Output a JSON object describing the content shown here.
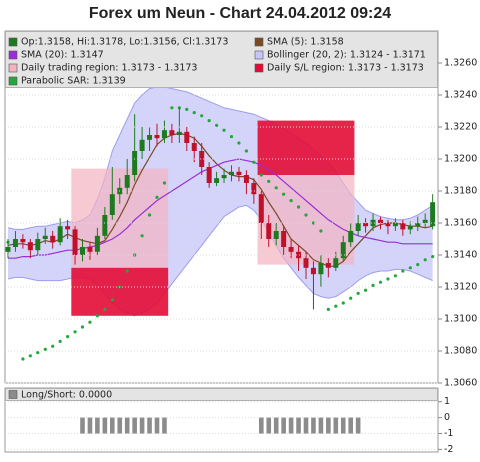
{
  "chart_data": [
    {
      "type": "candlestick",
      "title": "Forex um Neun - Chart 24.04.2012 09:24",
      "name": "Op:1.3158, Hi:1.3178, Lo:1.3156, Cl:1.3173",
      "up_color": "#1e7a1e",
      "down_color": "#c0102a",
      "open": [
        1.3142,
        1.3145,
        1.315,
        1.3148,
        1.3143,
        1.315,
        1.3152,
        1.3148,
        1.3158,
        1.3156,
        1.314,
        1.3145,
        1.3142,
        1.3152,
        1.3165,
        1.3178,
        1.3182,
        1.319,
        1.3205,
        1.3212,
        1.3215,
        1.3213,
        1.3218,
        1.3215,
        1.3217,
        1.321,
        1.3205,
        1.3195,
        1.3185,
        1.3188,
        1.319,
        1.3192,
        1.319,
        1.3185,
        1.3178,
        1.316,
        1.315,
        1.3155,
        1.3145,
        1.3142,
        1.3138,
        1.3132,
        1.3128,
        1.3135,
        1.3132,
        1.3138,
        1.3148,
        1.3155,
        1.316,
        1.3158,
        1.3162,
        1.316,
        1.3158,
        1.316,
        1.3156,
        1.3158,
        1.316,
        1.3158
      ],
      "high": [
        1.315,
        1.3155,
        1.3153,
        1.315,
        1.3154,
        1.3157,
        1.3155,
        1.3163,
        1.3162,
        1.3158,
        1.315,
        1.3148,
        1.3157,
        1.317,
        1.3195,
        1.3188,
        1.32,
        1.3228,
        1.322,
        1.322,
        1.3222,
        1.3224,
        1.3222,
        1.3232,
        1.322,
        1.3214,
        1.321,
        1.3198,
        1.3192,
        1.3194,
        1.3196,
        1.3195,
        1.3193,
        1.3188,
        1.318,
        1.3165,
        1.316,
        1.3158,
        1.315,
        1.3146,
        1.3142,
        1.3136,
        1.314,
        1.3138,
        1.3142,
        1.3152,
        1.316,
        1.3165,
        1.3163,
        1.3166,
        1.3164,
        1.3162,
        1.3163,
        1.3162,
        1.3161,
        1.3164,
        1.3166,
        1.3178
      ],
      "low": [
        1.3138,
        1.3142,
        1.3144,
        1.3138,
        1.314,
        1.3147,
        1.3144,
        1.3146,
        1.315,
        1.3134,
        1.3136,
        1.3137,
        1.314,
        1.315,
        1.3162,
        1.3172,
        1.3178,
        1.3186,
        1.32,
        1.3205,
        1.3208,
        1.321,
        1.321,
        1.321,
        1.3205,
        1.3198,
        1.319,
        1.3182,
        1.3183,
        1.3185,
        1.3186,
        1.3186,
        1.3178,
        1.3172,
        1.315,
        1.3145,
        1.3146,
        1.314,
        1.3138,
        1.313,
        1.3125,
        1.3106,
        1.312,
        1.3126,
        1.313,
        1.3136,
        1.3145,
        1.3152,
        1.3154,
        1.3155,
        1.3156,
        1.3153,
        1.3155,
        1.3152,
        1.3153,
        1.3155,
        1.3157,
        1.3156
      ],
      "close": [
        1.3145,
        1.315,
        1.3148,
        1.3143,
        1.315,
        1.3152,
        1.3148,
        1.3158,
        1.3156,
        1.314,
        1.3145,
        1.3142,
        1.3152,
        1.3165,
        1.3178,
        1.3182,
        1.319,
        1.3205,
        1.3212,
        1.3215,
        1.3213,
        1.3218,
        1.3215,
        1.3217,
        1.321,
        1.3205,
        1.3195,
        1.3185,
        1.3188,
        1.319,
        1.3192,
        1.319,
        1.3185,
        1.3178,
        1.316,
        1.315,
        1.3155,
        1.3145,
        1.3142,
        1.3138,
        1.3132,
        1.3128,
        1.3135,
        1.3132,
        1.3138,
        1.3148,
        1.3155,
        1.316,
        1.3158,
        1.3162,
        1.316,
        1.3158,
        1.316,
        1.3156,
        1.3158,
        1.316,
        1.3162,
        1.3173
      ],
      "lines": [
        {
          "name": "SMA (5): 1.3158",
          "color": "#7a4a24",
          "values": [
            1.3146,
            1.3147,
            1.3147,
            1.3146,
            1.3147,
            1.3149,
            1.3148,
            1.315,
            1.3153,
            1.3151,
            1.3149,
            1.3148,
            1.3147,
            1.3149,
            1.3156,
            1.3164,
            1.3173,
            1.3184,
            1.3193,
            1.3201,
            1.3209,
            1.3213,
            1.3215,
            1.3216,
            1.3215,
            1.3213,
            1.3208,
            1.3202,
            1.3197,
            1.3193,
            1.319,
            1.3189,
            1.3189,
            1.3187,
            1.3181,
            1.3173,
            1.3166,
            1.3158,
            1.315,
            1.3146,
            1.3142,
            1.3137,
            1.3135,
            1.3133,
            1.3133,
            1.3136,
            1.3142,
            1.3147,
            1.3152,
            1.3157,
            1.3159,
            1.316,
            1.316,
            1.3159,
            1.3158,
            1.3158,
            1.3157,
            1.3158
          ]
        },
        {
          "name": "SMA (20): 1.3147",
          "color": "#9a2ed6",
          "values": [
            1.3138,
            1.3138,
            1.3139,
            1.3139,
            1.314,
            1.314,
            1.3141,
            1.3142,
            1.3143,
            1.3143,
            1.3144,
            1.3145,
            1.3146,
            1.3148,
            1.315,
            1.3153,
            1.3157,
            1.3162,
            1.3166,
            1.317,
            1.3174,
            1.3177,
            1.318,
            1.3183,
            1.3186,
            1.3189,
            1.3192,
            1.3194,
            1.3196,
            1.3198,
            1.3199,
            1.32,
            1.3199,
            1.3198,
            1.3196,
            1.3193,
            1.319,
            1.3186,
            1.3182,
            1.3178,
            1.3174,
            1.317,
            1.3166,
            1.3162,
            1.3159,
            1.3156,
            1.3154,
            1.3152,
            1.3151,
            1.315,
            1.3149,
            1.3148,
            1.3148,
            1.3147,
            1.3147,
            1.3147,
            1.3147,
            1.3147
          ]
        }
      ],
      "band": {
        "name": "Bollinger (20, 2): 1.3124 - 1.3171",
        "color": "#c6c6fa",
        "stroke": "#9c9cee",
        "upper": [
          1.3157,
          1.3156,
          1.3156,
          1.3157,
          1.3158,
          1.3158,
          1.3159,
          1.316,
          1.3161,
          1.316,
          1.3162,
          1.3165,
          1.3175,
          1.3188,
          1.3205,
          1.3215,
          1.3225,
          1.3235,
          1.324,
          1.3244,
          1.3245,
          1.3245,
          1.3244,
          1.3243,
          1.3242,
          1.324,
          1.3238,
          1.3236,
          1.3234,
          1.3232,
          1.3231,
          1.323,
          1.3229,
          1.3228,
          1.3226,
          1.3224,
          1.3222,
          1.3219,
          1.3216,
          1.3213,
          1.321,
          1.3206,
          1.3202,
          1.3198,
          1.3192,
          1.3185,
          1.3178,
          1.3173,
          1.3168,
          1.3166,
          1.3164,
          1.3163,
          1.3162,
          1.3162,
          1.3163,
          1.3165,
          1.3168,
          1.3171
        ],
        "lower": [
          1.3125,
          1.3126,
          1.3126,
          1.3125,
          1.3124,
          1.3124,
          1.3124,
          1.3124,
          1.3125,
          1.3126,
          1.3126,
          1.3125,
          1.3121,
          1.3116,
          1.311,
          1.3106,
          1.3104,
          1.3102,
          1.3104,
          1.3106,
          1.311,
          1.3116,
          1.3122,
          1.3128,
          1.3134,
          1.314,
          1.3146,
          1.3152,
          1.3158,
          1.3164,
          1.3167,
          1.317,
          1.3171,
          1.3168,
          1.3162,
          1.3154,
          1.3146,
          1.3138,
          1.3132,
          1.3126,
          1.3121,
          1.3116,
          1.3114,
          1.3113,
          1.3114,
          1.3117,
          1.312,
          1.3124,
          1.3127,
          1.3129,
          1.313,
          1.313,
          1.3131,
          1.3131,
          1.313,
          1.3128,
          1.3126,
          1.3124
        ]
      },
      "regions": [
        {
          "name": "Daily trading region: 1.3173 - 1.3173",
          "color": "#f3b4c0",
          "spans": [
            {
              "from": 9,
              "to": 21,
              "low": 1.3132,
              "high": 1.3194
            },
            {
              "from": 34,
              "to": 46,
              "low": 1.3134,
              "high": 1.319
            }
          ]
        },
        {
          "name": "Daily S/L region: 1.3173 - 1.3173",
          "color": "#e30c36",
          "spans": [
            {
              "from": 9,
              "to": 21,
              "low": 1.3102,
              "high": 1.3132
            },
            {
              "from": 34,
              "to": 46,
              "low": 1.319,
              "high": 1.3224
            }
          ]
        }
      ],
      "sar": {
        "name": "Parabolic SAR: 1.3139",
        "color": "#22a83a",
        "values": [
          1.3148,
          1.3147,
          1.3075,
          1.3077,
          1.3079,
          1.3081,
          1.3083,
          1.3086,
          1.3089,
          1.3092,
          1.3095,
          1.3098,
          1.3102,
          1.3106,
          1.3112,
          1.312,
          1.313,
          1.314,
          1.3152,
          1.3165,
          1.3176,
          1.3185,
          1.3232,
          1.3232,
          1.3231,
          1.3229,
          1.3227,
          1.3224,
          1.3221,
          1.3218,
          1.3214,
          1.321,
          1.3205,
          1.3198,
          1.319,
          1.3186,
          1.3182,
          1.3178,
          1.3174,
          1.317,
          1.3165,
          1.316,
          1.3155,
          1.3106,
          1.3108,
          1.311,
          1.3113,
          1.3116,
          1.3118,
          1.3121,
          1.3123,
          1.3125,
          1.3127,
          1.313,
          1.3132,
          1.3134,
          1.3137,
          1.3139
        ]
      },
      "ylim": [
        1.306,
        1.328
      ],
      "yticks": [
        {
          "value": 1.306,
          "label": "1.3060"
        },
        {
          "value": 1.308,
          "label": "1.3080"
        },
        {
          "value": 1.31,
          "label": "1.3100"
        },
        {
          "value": 1.312,
          "label": "1.3120"
        },
        {
          "value": 1.314,
          "label": "1.3140"
        },
        {
          "value": 1.316,
          "label": "1.3160"
        },
        {
          "value": 1.318,
          "label": "1.3180"
        },
        {
          "value": 1.32,
          "label": "1.3200"
        },
        {
          "value": 1.322,
          "label": "1.3220"
        },
        {
          "value": 1.324,
          "label": "1.3240"
        },
        {
          "value": 1.326,
          "label": "1.3260"
        }
      ],
      "grid": true
    },
    {
      "type": "bar",
      "name": "Long/Short: 0.0000",
      "color": "#8c8c8c",
      "values": [
        0,
        0,
        0,
        0,
        0,
        0,
        0,
        0,
        0,
        0,
        -1,
        -1,
        -1,
        -1,
        -1,
        -1,
        -1,
        -1,
        -1,
        -1,
        -1,
        -1,
        0,
        0,
        0,
        0,
        0,
        0,
        0,
        0,
        0,
        0,
        0,
        0,
        -1,
        -1,
        -1,
        -1,
        -1,
        -1,
        -1,
        -1,
        -1,
        -1,
        -1,
        -1,
        -1,
        -1,
        0,
        0,
        0,
        0,
        0,
        0,
        0,
        0,
        0,
        0
      ],
      "ylim": [
        -2.1,
        1.8
      ],
      "yticks": [
        1,
        0,
        -1,
        -2
      ],
      "grid": true
    }
  ]
}
